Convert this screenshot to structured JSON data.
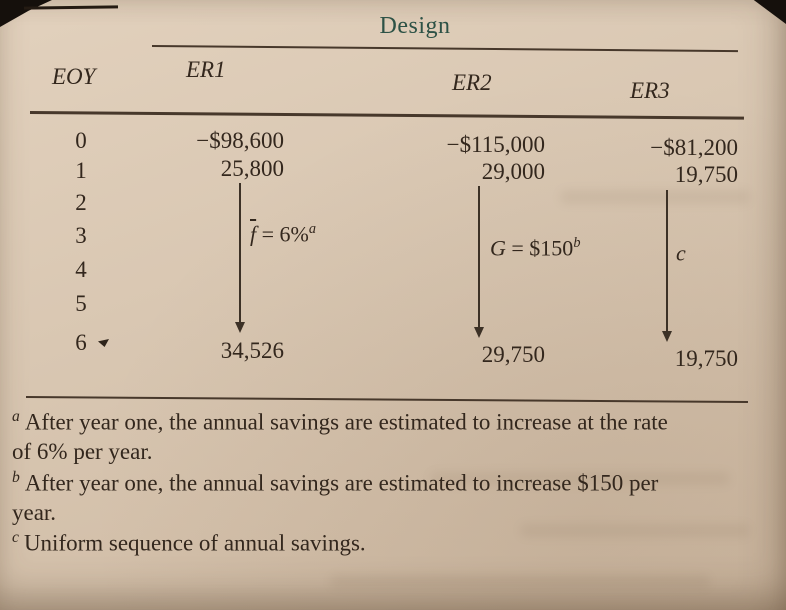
{
  "page": {
    "bg": "#d7c6b2",
    "ink": "#33271d",
    "accent": "#2d5246"
  },
  "table": {
    "spanner": "Design",
    "col_headers": {
      "eoy": "EOY",
      "er1": "ER1",
      "er2": "ER2",
      "er3": "ER3"
    },
    "rows": {
      "r0": {
        "eoy": "0",
        "er1": "−$98,600",
        "er2": "−$115,000",
        "er3": "−$81,200"
      },
      "r1": {
        "eoy": "1",
        "er1": "25,800",
        "er2": "29,000",
        "er3": "19,750"
      },
      "r2": {
        "eoy": "2"
      },
      "r3": {
        "eoy": "3"
      },
      "r4": {
        "eoy": "4"
      },
      "r5": {
        "eoy": "5"
      },
      "r6": {
        "eoy": "6",
        "er1": "34,526",
        "er2": "29,750",
        "er3": "19,750"
      }
    },
    "annotations": {
      "er1": {
        "var": "f",
        "rest": " = 6%",
        "sup": "a"
      },
      "er2": {
        "var": "G",
        "rest": " = $150",
        "sup": "b"
      },
      "er3": {
        "var": "c",
        "rest": "",
        "sup": ""
      }
    }
  },
  "footnotes": {
    "a": {
      "marker": "a",
      "text": "After year one, the annual savings are estimated to increase at the rate of 6% per year."
    },
    "b": {
      "marker": "b",
      "text": "After year one, the annual savings are estimated to increase $150 per year."
    },
    "c": {
      "marker": "c",
      "text": "Uniform sequence of annual savings."
    }
  }
}
